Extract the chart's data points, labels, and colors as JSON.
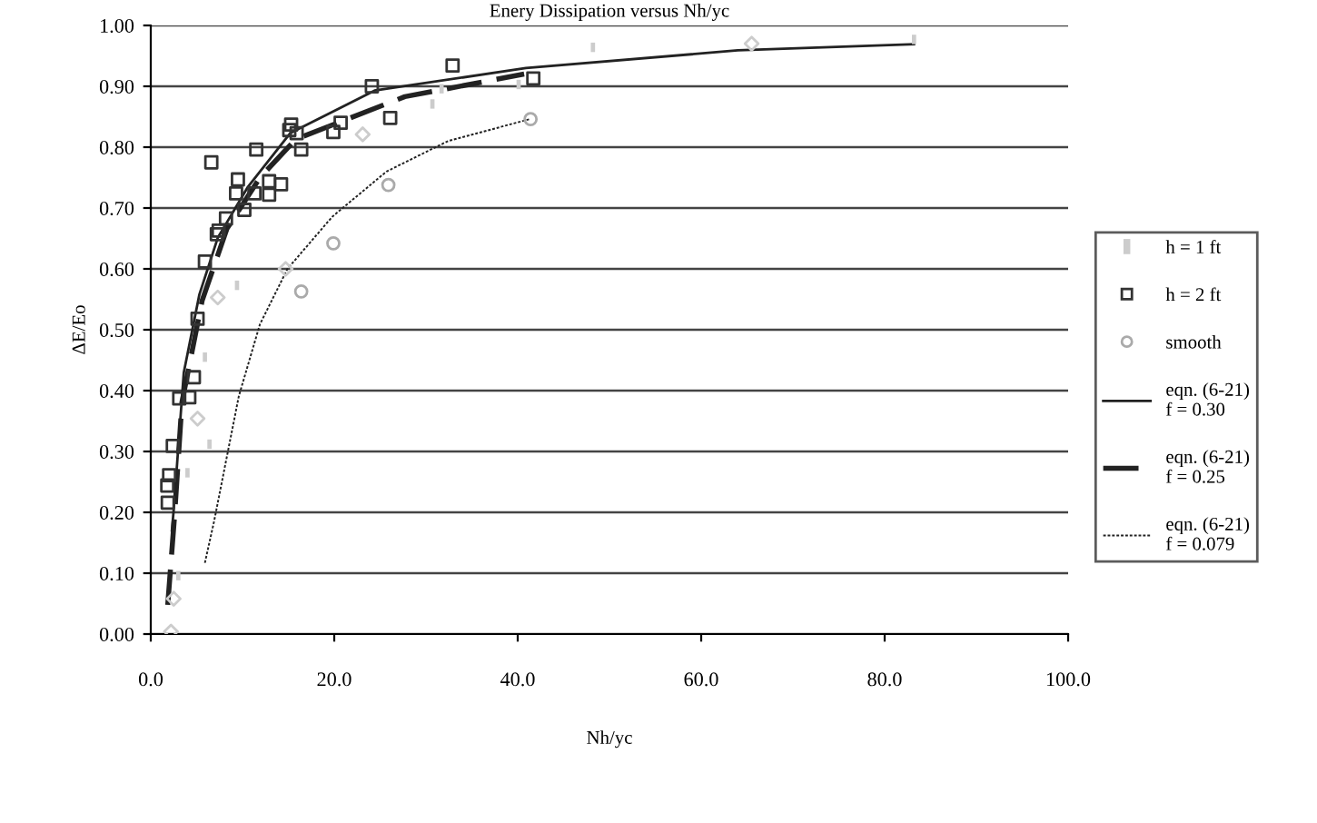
{
  "chart_data": {
    "type": "scatter",
    "title": "Enery Dissipation versus Nh/yc",
    "xlabel": "Nh/yc",
    "ylabel": "ΔE/Eo",
    "xlim": [
      0,
      100
    ],
    "ylim": [
      0,
      1
    ],
    "xticks": [
      {
        "value": 0,
        "label": "0.0"
      },
      {
        "value": 20,
        "label": "20.0"
      },
      {
        "value": 40,
        "label": "40.0"
      },
      {
        "value": 60,
        "label": "60.0"
      },
      {
        "value": 80,
        "label": "80.0"
      },
      {
        "value": 100,
        "label": "100.0"
      }
    ],
    "yticks": [
      {
        "value": 0,
        "label": "0.00"
      },
      {
        "value": 0.1,
        "label": "0.10"
      },
      {
        "value": 0.2,
        "label": "0.20"
      },
      {
        "value": 0.3,
        "label": "0.30"
      },
      {
        "value": 0.4,
        "label": "0.40"
      },
      {
        "value": 0.5,
        "label": "0.50"
      },
      {
        "value": 0.6,
        "label": "0.60"
      },
      {
        "value": 0.7,
        "label": "0.70"
      },
      {
        "value": 0.8,
        "label": "0.80"
      },
      {
        "value": 0.9,
        "label": "0.90"
      },
      {
        "value": 1.0,
        "label": "1.00"
      }
    ],
    "grid": "y",
    "legend": "right",
    "series": [
      {
        "name": "h = 1 ft",
        "color": "#cccccc",
        "x": [
          3.0,
          4.0,
          5.9,
          6.4,
          9.4,
          30.7,
          31.7,
          40.1,
          48.2,
          83.2
        ],
        "values": [
          0.096,
          0.265,
          0.455,
          0.312,
          0.573,
          0.871,
          0.896,
          0.903,
          0.964,
          0.977
        ]
      },
      {
        "name": "h = 2 ft",
        "marker": "square",
        "color": "#333333",
        "x": [
          1.85,
          1.8,
          2.0,
          2.4,
          3.1,
          4.2,
          4.7,
          5.1,
          5.9,
          6.6,
          7.2,
          7.4,
          8.2,
          9.5,
          9.3,
          10.2,
          11.3,
          11.5,
          12.9,
          12.9,
          14.2,
          15.3,
          15.1,
          15.9,
          16.4,
          19.9,
          20.7,
          24.1,
          26.1,
          32.9,
          41.7
        ],
        "values": [
          0.216,
          0.244,
          0.261,
          0.309,
          0.387,
          0.389,
          0.422,
          0.518,
          0.612,
          0.775,
          0.657,
          0.663,
          0.683,
          0.747,
          0.724,
          0.697,
          0.724,
          0.796,
          0.722,
          0.744,
          0.739,
          0.837,
          0.828,
          0.823,
          0.796,
          0.825,
          0.84,
          0.9,
          0.848,
          0.934,
          0.913
        ]
      },
      {
        "name": "smooth",
        "marker": "circle",
        "color": "#aaaaaa",
        "x": [
          16.4,
          19.9,
          25.9,
          41.4
        ],
        "values": [
          0.563,
          0.642,
          0.738,
          0.846
        ]
      },
      {
        "marker": "diamond",
        "color": "#cccccc",
        "x": [
          2.2,
          2.5,
          5.1,
          7.3,
          14.7,
          23.1,
          65.5
        ],
        "values": [
          0.004,
          0.058,
          0.354,
          0.553,
          0.6,
          0.821,
          0.97
        ]
      },
      {
        "name": "eqn. (6-21)\nf = 0.30",
        "type": "line",
        "line_style": "solid",
        "color": "#222222",
        "x": [
          2.3,
          2.5,
          3.6,
          5.3,
          7.3,
          10.6,
          15.2,
          24.4,
          40.9,
          64.0,
          83.2
        ],
        "values": [
          0.17,
          0.204,
          0.43,
          0.558,
          0.651,
          0.735,
          0.823,
          0.893,
          0.93,
          0.959,
          0.969
        ]
      },
      {
        "name": "eqn. (6-21)\nf = 0.25",
        "type": "line",
        "line_style": "dashed",
        "color": "#222222",
        "x": [
          1.85,
          2.6,
          3.4,
          5.6,
          8.3,
          11.9,
          15.8,
          27.7,
          40.7
        ],
        "values": [
          0.048,
          0.196,
          0.381,
          0.548,
          0.666,
          0.75,
          0.813,
          0.883,
          0.92
        ]
      },
      {
        "name": "eqn. (6-21)\nf = 0.079",
        "type": "line",
        "line_style": "dotted",
        "color": "#222222",
        "x": [
          5.9,
          6.9,
          9.6,
          11.9,
          14.9,
          19.8,
          25.7,
          32.4,
          41.3
        ],
        "values": [
          0.117,
          0.185,
          0.391,
          0.509,
          0.6,
          0.686,
          0.76,
          0.81,
          0.846
        ]
      }
    ]
  }
}
